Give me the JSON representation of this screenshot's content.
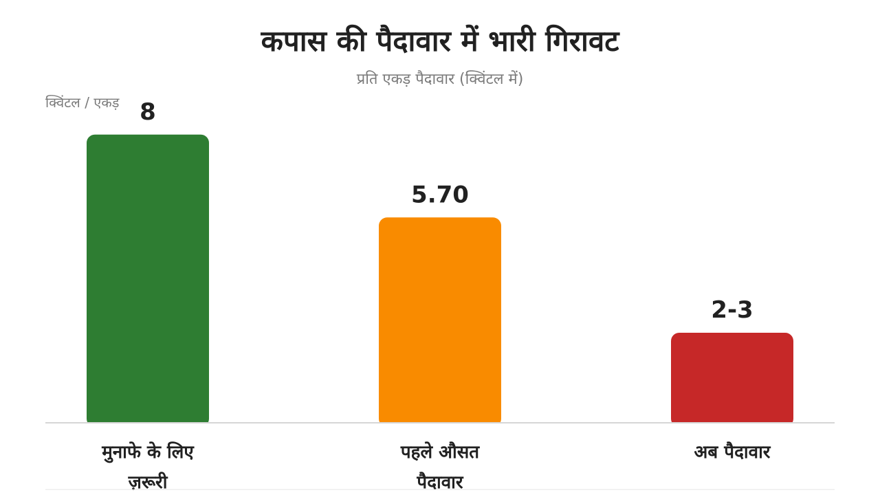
{
  "chart_data": {
    "type": "bar",
    "title": "कपास की पैदावार में भारी गिरावट",
    "subtitle": "प्रति एकड़ पैदावार (क्विंटल में)",
    "ylabel": "क्विंटल / एकड़",
    "ylim": [
      0,
      10.4
    ],
    "grid": false,
    "bars": [
      {
        "category_lines": [
          "मुनाफे के लिए",
          "ज़रूरी"
        ],
        "value": 8,
        "label": "8",
        "color": "#2e7d32"
      },
      {
        "category_lines": [
          "पहले औसत",
          "पैदावार"
        ],
        "value": 5.7,
        "label": "5.70",
        "color": "#f98b00"
      },
      {
        "category_lines": [
          "अब पैदावार"
        ],
        "value": 2.5,
        "label": "2-3",
        "color": "#c62828"
      }
    ]
  }
}
